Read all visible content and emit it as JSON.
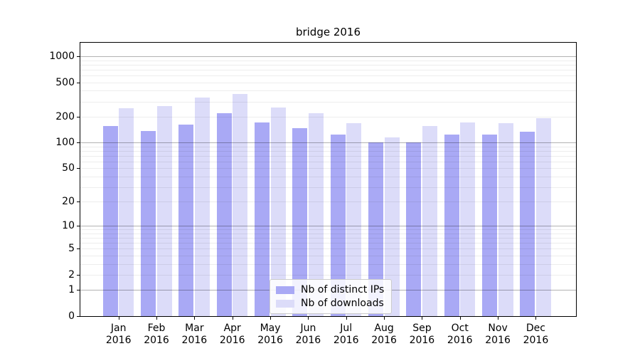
{
  "title": "bridge 2016",
  "chart_data": {
    "type": "bar",
    "title": "bridge 2016",
    "y_scale": "log1p",
    "grid": true,
    "legend_position": "lower center",
    "categories": [
      "Jan 2016",
      "Feb 2016",
      "Mar 2016",
      "Apr 2016",
      "May 2016",
      "Jun 2016",
      "Jul 2016",
      "Aug 2016",
      "Sep 2016",
      "Oct 2016",
      "Nov 2016",
      "Dec 2016"
    ],
    "month_labels": [
      "Jan",
      "Feb",
      "Mar",
      "Apr",
      "May",
      "Jun",
      "Jul",
      "Aug",
      "Sep",
      "Oct",
      "Nov",
      "Dec"
    ],
    "year_label": "2016",
    "series": [
      {
        "name": "Nb of distinct IPs",
        "color": "#a9a9f5",
        "values": [
          155,
          137,
          163,
          220,
          172,
          146,
          123,
          100,
          100,
          123,
          124,
          134
        ]
      },
      {
        "name": "Nb of downloads",
        "color": "#dcdcf9",
        "values": [
          251,
          266,
          335,
          369,
          258,
          218,
          167,
          115,
          155,
          172,
          167,
          192
        ]
      }
    ],
    "yticks": [
      0,
      1,
      2,
      5,
      10,
      20,
      50,
      100,
      200,
      500,
      1000
    ],
    "ylim": [
      0,
      1430
    ],
    "xlabel": "",
    "ylabel": ""
  },
  "colors": {
    "background": "#ffffff",
    "spine": "#000000",
    "grid_major": "rgba(0,0,0,0.30)",
    "grid_minor": "rgba(0,0,0,0.07)",
    "text": "#000000",
    "legend_border": "#cccccc"
  }
}
